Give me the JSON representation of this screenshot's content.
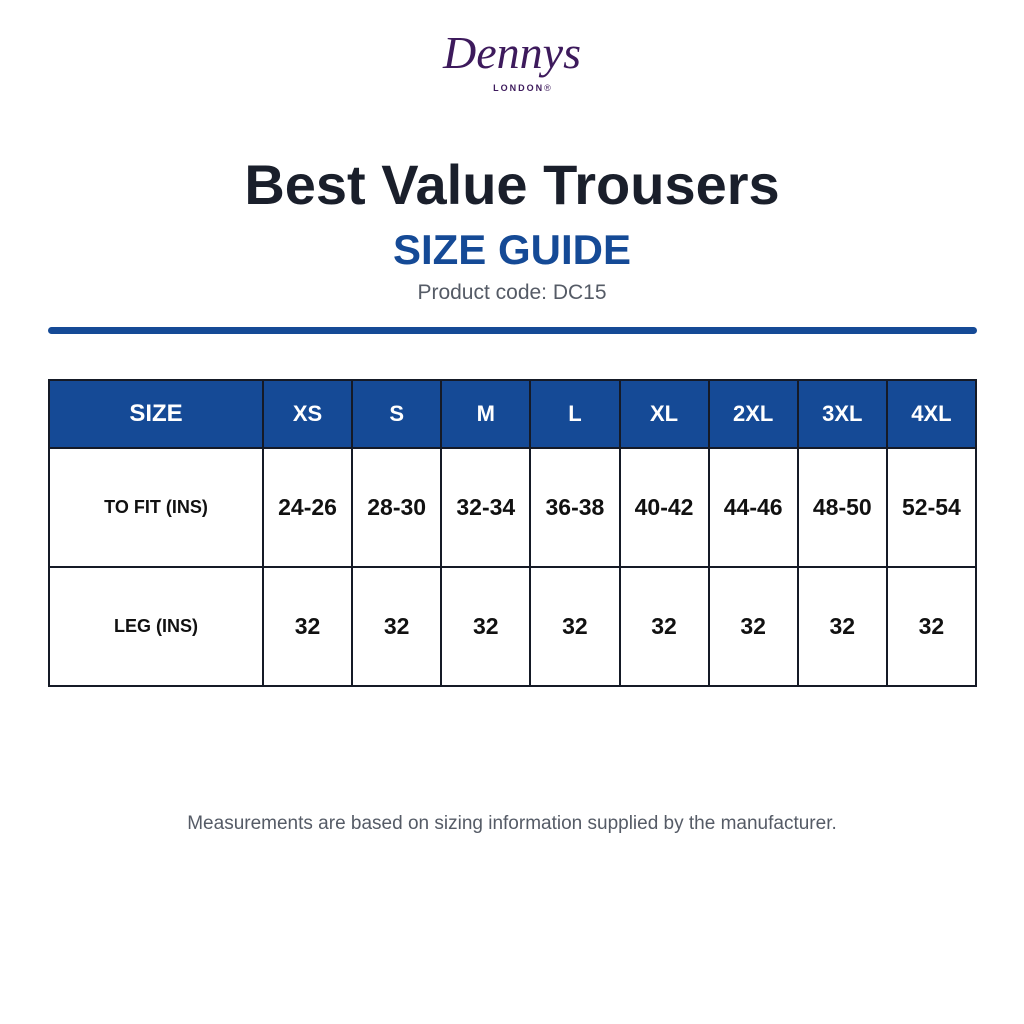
{
  "logo": {
    "name": "Dennys",
    "sub": "LONDON",
    "mark": "®"
  },
  "header": {
    "title": "Best Value Trousers",
    "subtitle": "SIZE GUIDE",
    "code": "Product code: DC15"
  },
  "table": {
    "header": [
      "SIZE",
      "XS",
      "S",
      "M",
      "L",
      "XL",
      "2XL",
      "3XL",
      "4XL"
    ],
    "rows": [
      [
        "TO FIT (INS)",
        "24-26",
        "28-30",
        "32-34",
        "36-38",
        "40-42",
        "44-46",
        "48-50",
        "52-54"
      ],
      [
        "LEG (INS)",
        "32",
        "32",
        "32",
        "32",
        "32",
        "32",
        "32",
        "32"
      ]
    ]
  },
  "footer": "Measurements are based on sizing information supplied by the manufacturer."
}
